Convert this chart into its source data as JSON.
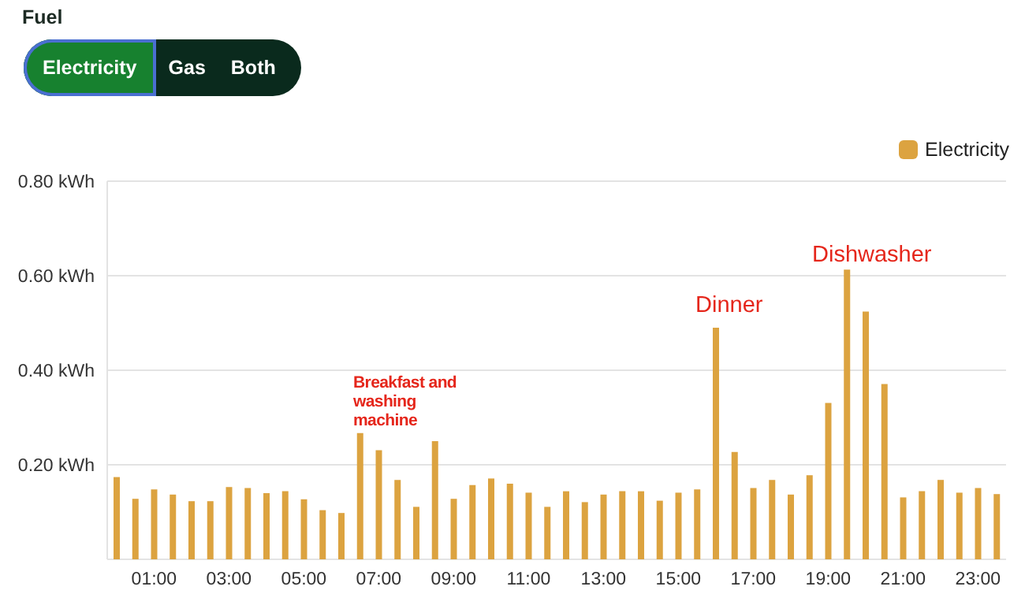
{
  "chart_data": {
    "type": "bar",
    "categories": [
      null,
      null,
      "01:00",
      null,
      null,
      null,
      "03:00",
      null,
      null,
      null,
      "05:00",
      null,
      null,
      null,
      "07:00",
      null,
      null,
      null,
      "09:00",
      null,
      null,
      null,
      "11:00",
      null,
      null,
      null,
      "13:00",
      null,
      null,
      null,
      "15:00",
      null,
      null,
      null,
      "17:00",
      null,
      null,
      null,
      "19:00",
      null,
      null,
      null,
      "21:00",
      null,
      null,
      null,
      "23:00",
      null
    ],
    "series": [
      {
        "name": "Electricity",
        "color": "#dca340",
        "values": [
          0.174,
          0.128,
          0.148,
          0.137,
          0.123,
          0.123,
          0.153,
          0.151,
          0.14,
          0.144,
          0.127,
          0.104,
          0.098,
          0.267,
          0.231,
          0.168,
          0.111,
          0.25,
          0.128,
          0.157,
          0.171,
          0.16,
          0.141,
          0.111,
          0.144,
          0.121,
          0.137,
          0.144,
          0.144,
          0.124,
          0.141,
          0.148,
          0.49,
          0.227,
          0.151,
          0.168,
          0.137,
          0.178,
          0.331,
          0.613,
          0.524,
          0.371,
          0.131,
          0.144,
          0.168,
          0.141,
          0.151,
          0.138
        ]
      }
    ],
    "ylim": [
      0,
      0.8
    ],
    "yticks": [
      {
        "value": 0.2,
        "label": "0.20 kWh"
      },
      {
        "value": 0.4,
        "label": "0.40 kWh"
      },
      {
        "value": 0.6,
        "label": "0.60 kWh"
      },
      {
        "value": 0.8,
        "label": "0.80 kWh"
      }
    ],
    "grid": "y",
    "legend": "top right",
    "annotations": [
      "Fuel",
      "Electricity",
      "Gas",
      "Both",
      "Breakfast and washing machine",
      "Dinner",
      "Dishwasher"
    ]
  }
}
